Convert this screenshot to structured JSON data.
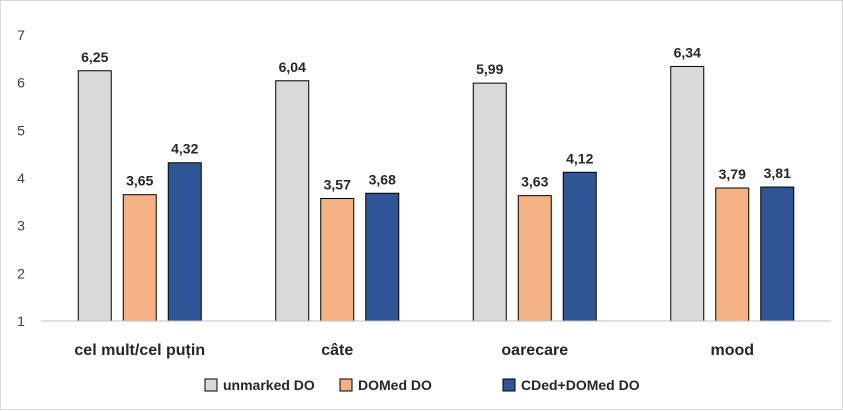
{
  "chart_data": {
    "type": "bar",
    "categories": [
      "cel mult/cel puțin",
      "câte",
      "oarecare",
      "mood"
    ],
    "series": [
      {
        "name": "unmarked DO",
        "values": [
          6.25,
          6.04,
          5.99,
          6.34
        ],
        "labels": [
          "6,25",
          "6,04",
          "5,99",
          "6,34"
        ],
        "color": "#d9d9d9"
      },
      {
        "name": "DOMed DO",
        "values": [
          3.65,
          3.57,
          3.63,
          3.79
        ],
        "labels": [
          "3,65",
          "3,57",
          "3,63",
          "3,79"
        ],
        "color": "#f4b183"
      },
      {
        "name": "CDed+DOMed DO",
        "values": [
          4.32,
          3.68,
          4.12,
          3.81
        ],
        "labels": [
          "4,32",
          "3,68",
          "4,12",
          "3,81"
        ],
        "color": "#2f5597"
      }
    ],
    "ylim": [
      1,
      7
    ],
    "yticks": [
      "1",
      "2",
      "3",
      "4",
      "5",
      "6",
      "7"
    ],
    "grid": false,
    "legend_position": "bottom",
    "bar_border_color": "#000000"
  }
}
